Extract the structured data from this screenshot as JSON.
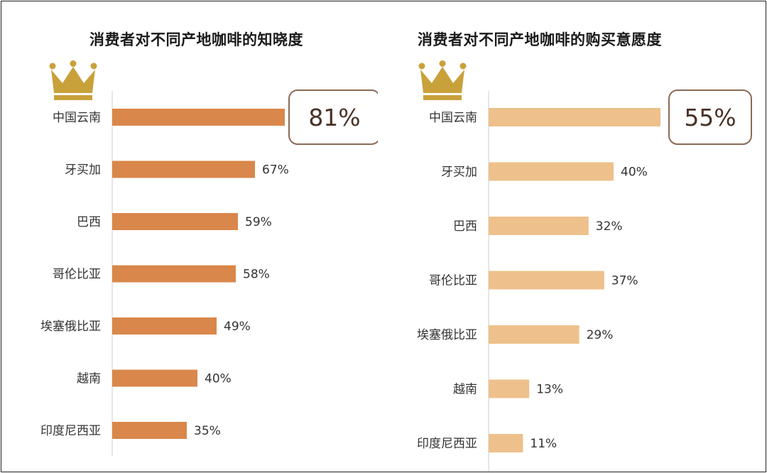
{
  "chart_data": [
    {
      "type": "bar",
      "orientation": "horizontal",
      "title": "消费者对不同产地咖啡的知晓度",
      "categories": [
        "中国云南",
        "牙买加",
        "巴西",
        "哥伦比亚",
        "埃塞俄比亚",
        "越南",
        "印度尼西亚"
      ],
      "values": [
        81,
        67,
        59,
        58,
        49,
        40,
        35
      ],
      "value_labels": [
        "81%",
        "67%",
        "59%",
        "58%",
        "49%",
        "40%",
        "35%"
      ],
      "highlight": {
        "index": 0,
        "label": "81%"
      },
      "unit": "%",
      "xlim": [
        0,
        100
      ],
      "bar_color": "#d9874a",
      "grid": false,
      "legend": "none"
    },
    {
      "type": "bar",
      "orientation": "horizontal",
      "title": "消费者对不同产地咖啡的购买意愿度",
      "categories": [
        "中国云南",
        "牙买加",
        "巴西",
        "哥伦比亚",
        "埃塞俄比亚",
        "越南",
        "印度尼西亚"
      ],
      "values": [
        55,
        40,
        32,
        37,
        29,
        13,
        11
      ],
      "value_labels": [
        "55%",
        "40%",
        "32%",
        "37%",
        "29%",
        "13%",
        "11%"
      ],
      "highlight": {
        "index": 0,
        "label": "55%"
      },
      "unit": "%",
      "xlim": [
        0,
        100
      ],
      "bar_color": "#eec08b",
      "grid": false,
      "legend": "none"
    }
  ],
  "decor": {
    "crown_icon": "crown-icon",
    "crown_color": "#c9a13b",
    "highlight_border_color": "#8c6a55",
    "axis_line_color": "#e6e6e6"
  }
}
